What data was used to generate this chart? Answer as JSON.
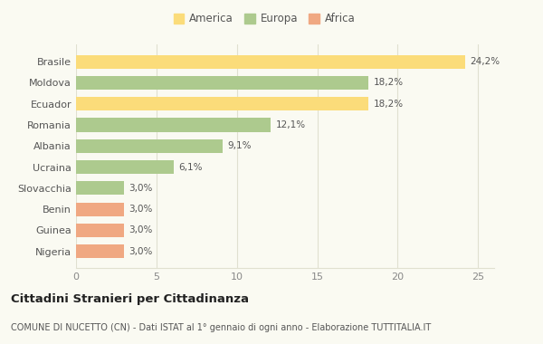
{
  "categories": [
    "Brasile",
    "Moldova",
    "Ecuador",
    "Romania",
    "Albania",
    "Ucraina",
    "Slovacchia",
    "Benin",
    "Guinea",
    "Nigeria"
  ],
  "values": [
    24.2,
    18.2,
    18.2,
    12.1,
    9.1,
    6.1,
    3.0,
    3.0,
    3.0,
    3.0
  ],
  "labels": [
    "24,2%",
    "18,2%",
    "18,2%",
    "12,1%",
    "9,1%",
    "6,1%",
    "3,0%",
    "3,0%",
    "3,0%",
    "3,0%"
  ],
  "bar_colors": [
    "#FBDC7A",
    "#ADCA8E",
    "#FBDC7A",
    "#ADCA8E",
    "#ADCA8E",
    "#ADCA8E",
    "#ADCA8E",
    "#F0A882",
    "#F0A882",
    "#F0A882"
  ],
  "legend_labels": [
    "America",
    "Europa",
    "Africa"
  ],
  "legend_colors": [
    "#FBDC7A",
    "#ADCA8E",
    "#F0A882"
  ],
  "title": "Cittadini Stranieri per Cittadinanza",
  "subtitle": "COMUNE DI NUCETTO (CN) - Dati ISTAT al 1° gennaio di ogni anno - Elaborazione TUTTITALIA.IT",
  "xlim": [
    0,
    26
  ],
  "xticks": [
    0,
    5,
    10,
    15,
    20,
    25
  ],
  "background_color": "#fafaf2",
  "plot_background": "#fafaf2",
  "grid_color": "#e0e0d0"
}
